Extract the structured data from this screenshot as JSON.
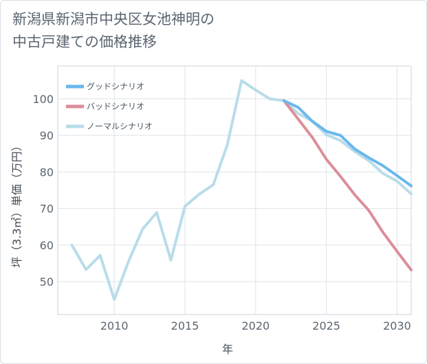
{
  "title_line1": "新潟県新潟市中央区女池神明の",
  "title_line2": "中古戸建ての価格推移",
  "chart_data": {
    "type": "line",
    "xlabel": "年",
    "ylabel": "坪（3.3㎡）単価（万円）",
    "xlim": [
      2006.0,
      2031.0
    ],
    "ylim": [
      41,
      109
    ],
    "xticks": [
      2010,
      2015,
      2020,
      2025,
      2030
    ],
    "yticks": [
      50,
      60,
      70,
      80,
      90,
      100
    ],
    "grid": true,
    "legend_position": "top-left",
    "series": [
      {
        "name": "グッドシナリオ",
        "color": "#6ab8ec",
        "x": [
          2022,
          2023,
          2024,
          2025,
          2026,
          2027,
          2028,
          2029,
          2030,
          2031
        ],
        "values": [
          99.5,
          97.7,
          93.9,
          91.1,
          90.0,
          86.3,
          83.9,
          81.7,
          79.0,
          76.2
        ]
      },
      {
        "name": "バッドシナリオ",
        "color": "#dc8e98",
        "x": [
          2022,
          2023,
          2024,
          2025,
          2026,
          2027,
          2028,
          2029,
          2030,
          2031
        ],
        "values": [
          99.5,
          94.5,
          89.5,
          83.5,
          78.8,
          73.8,
          69.5,
          63.5,
          58.3,
          53.2
        ]
      },
      {
        "name": "ノーマルシナリオ",
        "color": "#b9dcea",
        "x": [
          2007,
          2008,
          2009,
          2010,
          2011,
          2012,
          2013,
          2014,
          2015,
          2016,
          2017,
          2018,
          2019,
          2020,
          2021,
          2022,
          2023,
          2024,
          2025,
          2026,
          2027,
          2028,
          2029,
          2030,
          2031
        ],
        "values": [
          60.0,
          53.3,
          57.2,
          45.1,
          55.5,
          64.4,
          68.9,
          55.9,
          70.6,
          73.9,
          76.5,
          87.5,
          105.0,
          102.4,
          100.0,
          99.5,
          96.0,
          93.9,
          90.2,
          88.6,
          85.6,
          83.1,
          79.6,
          77.5,
          74.0
        ]
      }
    ]
  }
}
